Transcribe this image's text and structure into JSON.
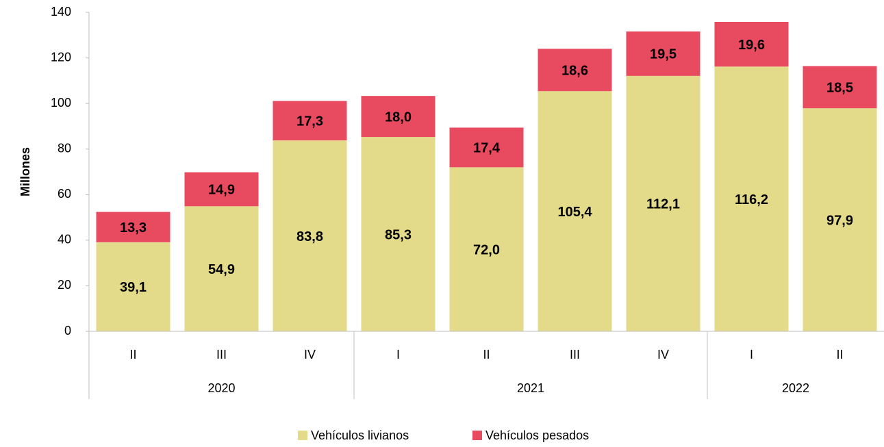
{
  "chart_data": {
    "type": "stacked_bar",
    "ylabel": "Millones",
    "categories": [
      "II",
      "III",
      "IV",
      "I",
      "II",
      "III",
      "IV",
      "I",
      "II"
    ],
    "x_groups": [
      {
        "label": "2020",
        "span": 3
      },
      {
        "label": "2021",
        "span": 4
      },
      {
        "label": "2022",
        "span": 2
      }
    ],
    "series": [
      {
        "name": "Vehículos livianos",
        "color": "#e3da8a",
        "values": [
          39.1,
          54.9,
          83.8,
          85.3,
          72.0,
          105.4,
          112.1,
          116.2,
          97.9
        ],
        "value_labels": [
          "39,1",
          "54,9",
          "83,8",
          "85,3",
          "72,0",
          "105,4",
          "112,1",
          "116,2",
          "97,9"
        ]
      },
      {
        "name": "Vehículos pesados",
        "color": "#e84a5f",
        "values": [
          13.3,
          14.9,
          17.3,
          18.0,
          17.4,
          18.6,
          19.5,
          19.6,
          18.5
        ],
        "value_labels": [
          "13,3",
          "14,9",
          "17,3",
          "18,0",
          "17,4",
          "18,6",
          "19,5",
          "19,6",
          "18,5"
        ]
      }
    ],
    "ylim": [
      0,
      140
    ],
    "yticks": [
      0,
      20,
      40,
      60,
      80,
      100,
      120,
      140
    ],
    "grid": false,
    "legend": "bottom"
  }
}
